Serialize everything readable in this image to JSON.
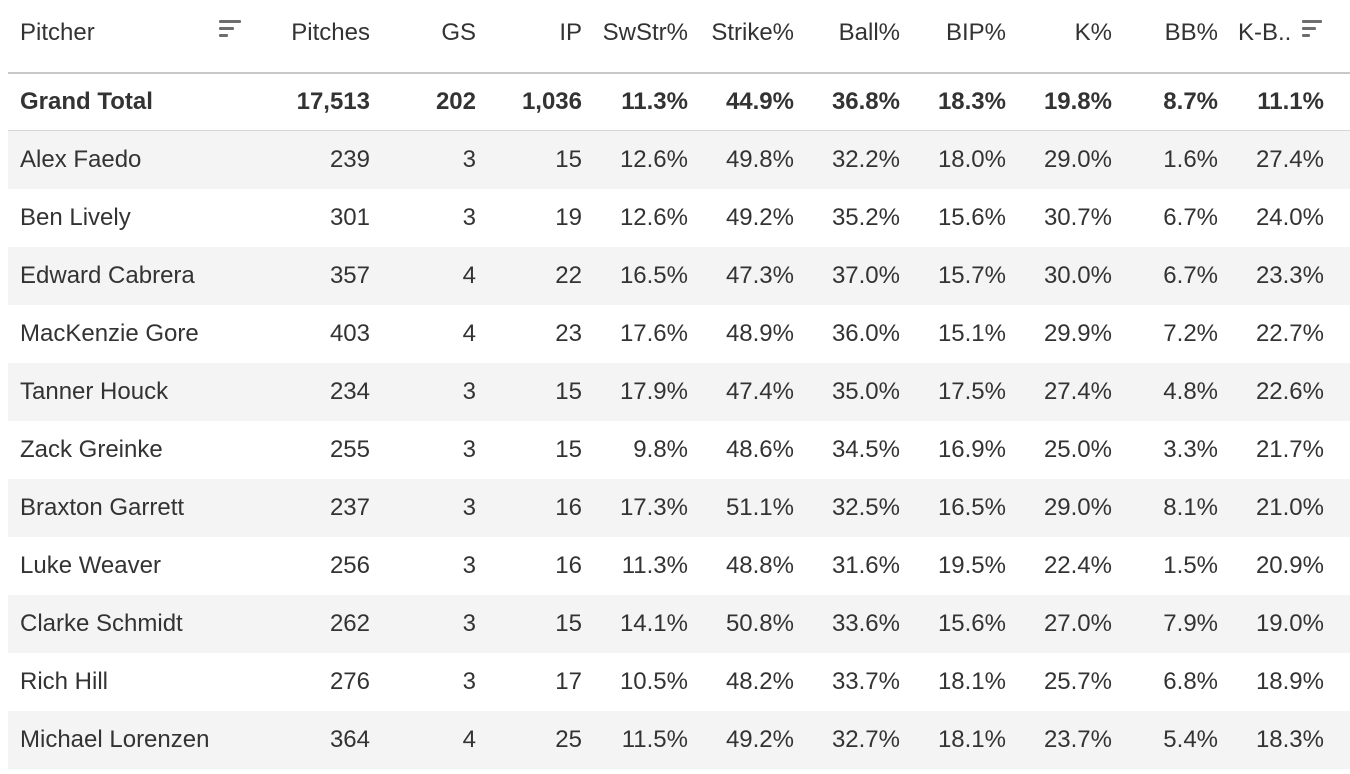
{
  "table": {
    "columns": [
      {
        "key": "pitcher",
        "label": "Pitcher"
      },
      {
        "key": "pitches",
        "label": "Pitches"
      },
      {
        "key": "gs",
        "label": "GS"
      },
      {
        "key": "ip",
        "label": "IP"
      },
      {
        "key": "swstr",
        "label": "SwStr%"
      },
      {
        "key": "strike",
        "label": "Strike%"
      },
      {
        "key": "ball",
        "label": "Ball%"
      },
      {
        "key": "bip",
        "label": "BIP%"
      },
      {
        "key": "k",
        "label": "K%"
      },
      {
        "key": "bb",
        "label": "BB%"
      },
      {
        "key": "kbb",
        "label": "K-B.."
      }
    ],
    "sort_icons": {
      "pitcher": "sort-icon",
      "kbb": "sort-descending-icon"
    },
    "grand_total": [
      "Grand Total",
      "17,513",
      "202",
      "1,036",
      "11.3%",
      "44.9%",
      "36.8%",
      "18.3%",
      "19.8%",
      "8.7%",
      "11.1%"
    ],
    "rows": [
      [
        "Alex Faedo",
        "239",
        "3",
        "15",
        "12.6%",
        "49.8%",
        "32.2%",
        "18.0%",
        "29.0%",
        "1.6%",
        "27.4%"
      ],
      [
        "Ben Lively",
        "301",
        "3",
        "19",
        "12.6%",
        "49.2%",
        "35.2%",
        "15.6%",
        "30.7%",
        "6.7%",
        "24.0%"
      ],
      [
        "Edward Cabrera",
        "357",
        "4",
        "22",
        "16.5%",
        "47.3%",
        "37.0%",
        "15.7%",
        "30.0%",
        "6.7%",
        "23.3%"
      ],
      [
        "MacKenzie Gore",
        "403",
        "4",
        "23",
        "17.6%",
        "48.9%",
        "36.0%",
        "15.1%",
        "29.9%",
        "7.2%",
        "22.7%"
      ],
      [
        "Tanner Houck",
        "234",
        "3",
        "15",
        "17.9%",
        "47.4%",
        "35.0%",
        "17.5%",
        "27.4%",
        "4.8%",
        "22.6%"
      ],
      [
        "Zack Greinke",
        "255",
        "3",
        "15",
        "9.8%",
        "48.6%",
        "34.5%",
        "16.9%",
        "25.0%",
        "3.3%",
        "21.7%"
      ],
      [
        "Braxton Garrett",
        "237",
        "3",
        "16",
        "17.3%",
        "51.1%",
        "32.5%",
        "16.5%",
        "29.0%",
        "8.1%",
        "21.0%"
      ],
      [
        "Luke Weaver",
        "256",
        "3",
        "16",
        "11.3%",
        "48.8%",
        "31.6%",
        "19.5%",
        "22.4%",
        "1.5%",
        "20.9%"
      ],
      [
        "Clarke Schmidt",
        "262",
        "3",
        "15",
        "14.1%",
        "50.8%",
        "33.6%",
        "15.6%",
        "27.0%",
        "7.9%",
        "19.0%"
      ],
      [
        "Rich Hill",
        "276",
        "3",
        "17",
        "10.5%",
        "48.2%",
        "33.7%",
        "18.1%",
        "25.7%",
        "6.8%",
        "18.9%"
      ],
      [
        "Michael Lorenzen",
        "364",
        "4",
        "25",
        "11.5%",
        "49.2%",
        "32.7%",
        "18.1%",
        "23.7%",
        "5.4%",
        "18.3%"
      ]
    ]
  }
}
